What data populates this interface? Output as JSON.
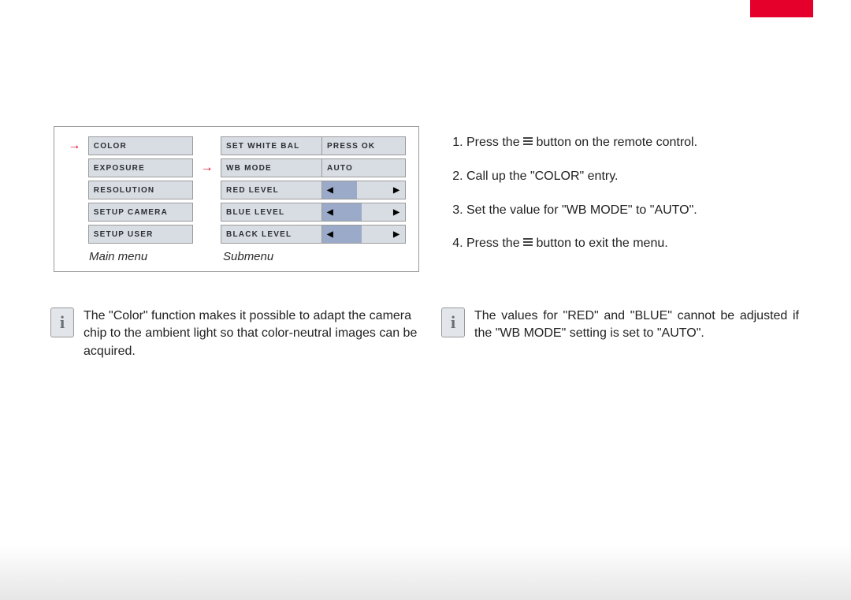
{
  "colors": {
    "accent_red": "#e4002b",
    "cell_bg": "#d8dde4",
    "slider_fill": "#9aaac8",
    "border": "#9a9a9a",
    "text": "#222222",
    "info_icon_bg": "#e2e5e9",
    "info_icon_fg": "#6b7078"
  },
  "diagram": {
    "main_menu_caption": "Main menu",
    "submenu_caption": "Submenu",
    "main_menu_items": [
      "COLOR",
      "EXPOSURE",
      "RESOLUTION",
      "SETUP CAMERA",
      "SETUP USER"
    ],
    "main_selected_index": 0,
    "submenu": [
      {
        "label": "SET WHITE BAL",
        "value_type": "text",
        "value": "PRESS OK"
      },
      {
        "label": "WB MODE",
        "value_type": "text",
        "value": "AUTO",
        "pointer": true
      },
      {
        "label": "RED LEVEL",
        "value_type": "slider",
        "fill_pct": 42
      },
      {
        "label": "BLUE LEVEL",
        "value_type": "slider",
        "fill_pct": 48
      },
      {
        "label": "BLACK LEVEL",
        "value_type": "slider",
        "fill_pct": 48
      }
    ],
    "slider_left_glyph": "◀",
    "slider_right_glyph": "▶",
    "pointer_glyph": "→"
  },
  "steps": {
    "items": [
      {
        "pre": "Press the ",
        "icon": true,
        "post": " button on the remote control."
      },
      {
        "pre": "Call up the \"COLOR\" entry.",
        "icon": false,
        "post": ""
      },
      {
        "pre": "Set the value for \"WB MODE\" to \"AUTO\".",
        "icon": false,
        "post": ""
      },
      {
        "pre": "Press the ",
        "icon": true,
        "post": " button to exit the menu."
      }
    ]
  },
  "info": {
    "left": "The \"Color\" function makes it possible to adapt the camera chip to the ambient light so that color-neutral images can be acquired.",
    "right": "The values for \"RED\" and \"BLUE\" cannot be adjusted if the \"WB MODE\" setting is set to \"AUTO\".",
    "icon_char": "i"
  }
}
